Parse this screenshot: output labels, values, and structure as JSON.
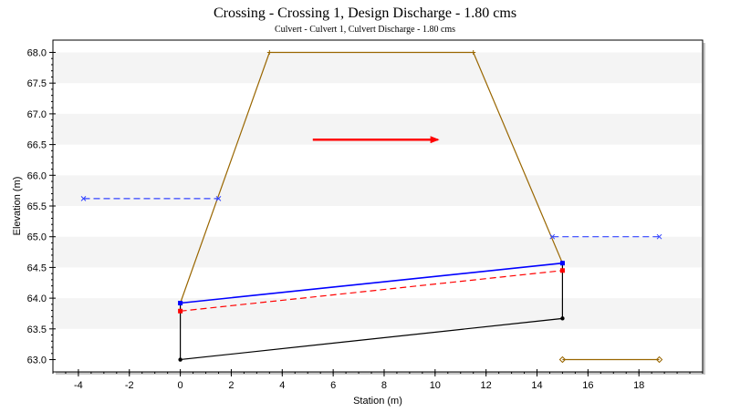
{
  "chart_data": {
    "type": "line",
    "title": "Crossing - Crossing 1, Design Discharge - 1.80 cms",
    "subtitle": "Culvert - Culvert 1, Culvert Discharge - 1.80 cms",
    "xlabel": "Station (m)",
    "ylabel": "Elevation (m)",
    "xlim": [
      -5,
      20.5
    ],
    "ylim": [
      62.8,
      68.2
    ],
    "xticks": [
      -4,
      -2,
      0,
      2,
      4,
      6,
      8,
      10,
      12,
      14,
      16,
      18
    ],
    "yticks": [
      63.0,
      63.5,
      64.0,
      64.5,
      65.0,
      65.5,
      66.0,
      66.5,
      67.0,
      67.5,
      68.0
    ],
    "grid": "alternating horizontal bands",
    "legend": "none",
    "series": [
      {
        "color": "#996600",
        "style": "solid",
        "marker": "plus",
        "x": [
          0,
          3.5,
          11.5,
          15
        ],
        "y": [
          63.92,
          68.0,
          68.0,
          64.57
        ]
      },
      {
        "color": "#000000",
        "style": "solid",
        "marker": "dot",
        "x": [
          0,
          0,
          15,
          15
        ],
        "y": [
          63.92,
          63.0,
          63.67,
          64.57
        ]
      },
      {
        "color": "#0000ff",
        "style": "solid",
        "marker": "square",
        "x": [
          0,
          15
        ],
        "y": [
          63.92,
          64.57
        ]
      },
      {
        "color": "#ff0000",
        "style": "dashed",
        "marker": "square",
        "x": [
          0,
          15
        ],
        "y": [
          63.79,
          64.45
        ]
      },
      {
        "color": "#3344ff",
        "style": "dashed",
        "marker": "cross",
        "x": [
          -3.8,
          1.5
        ],
        "y": [
          65.62,
          65.62
        ]
      },
      {
        "color": "#3344ff",
        "style": "dashed",
        "marker": "cross",
        "x": [
          14.6,
          18.8
        ],
        "y": [
          65.0,
          65.0
        ]
      },
      {
        "color": "#996600",
        "style": "solid",
        "marker": "diamond",
        "x": [
          15,
          18.8
        ],
        "y": [
          63.0,
          63.0
        ]
      }
    ],
    "annotations": [
      {
        "type": "arrow",
        "color": "#ff0000",
        "x": [
          5.2,
          10.1
        ],
        "y": [
          66.58,
          66.58
        ]
      }
    ]
  }
}
